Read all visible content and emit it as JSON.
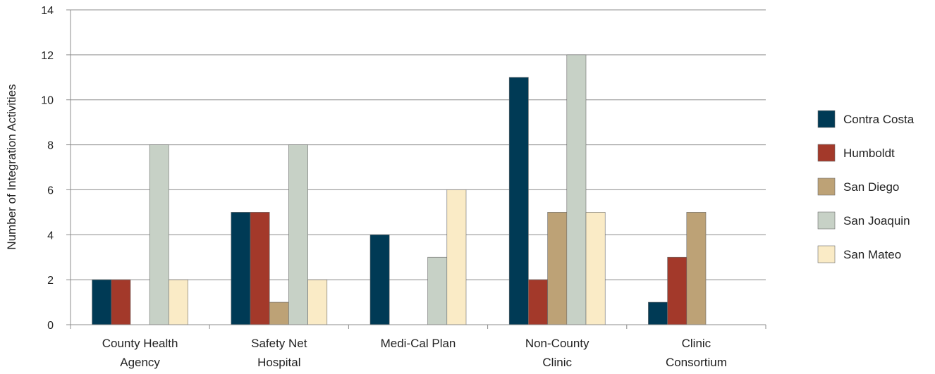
{
  "chart_data": {
    "type": "bar",
    "title": "",
    "xlabel": "",
    "ylabel": "Number of Integration Activities",
    "ylim": [
      0,
      14
    ],
    "yticks": [
      0,
      2,
      4,
      6,
      8,
      10,
      12,
      14
    ],
    "grid": true,
    "legend_position": "right",
    "categories": [
      [
        "County Health",
        "Agency"
      ],
      [
        "Safety Net",
        "Hospital"
      ],
      [
        "Medi-Cal Plan"
      ],
      [
        "Non-County",
        "Clinic"
      ],
      [
        "Clinic",
        "Consortium"
      ]
    ],
    "series": [
      {
        "name": "Contra Costa",
        "color": "#003a55",
        "values": [
          2,
          5,
          4,
          11,
          1
        ]
      },
      {
        "name": "Humboldt",
        "color": "#a3392a",
        "values": [
          2,
          5,
          0,
          2,
          3
        ]
      },
      {
        "name": "San Diego",
        "color": "#bda276",
        "values": [
          0,
          1,
          0,
          5,
          5
        ]
      },
      {
        "name": "San Joaquin",
        "color": "#c7d1c6",
        "values": [
          8,
          8,
          3,
          12,
          0
        ]
      },
      {
        "name": "San Mateo",
        "color": "#faebc6",
        "values": [
          2,
          2,
          6,
          5,
          0
        ]
      }
    ]
  }
}
